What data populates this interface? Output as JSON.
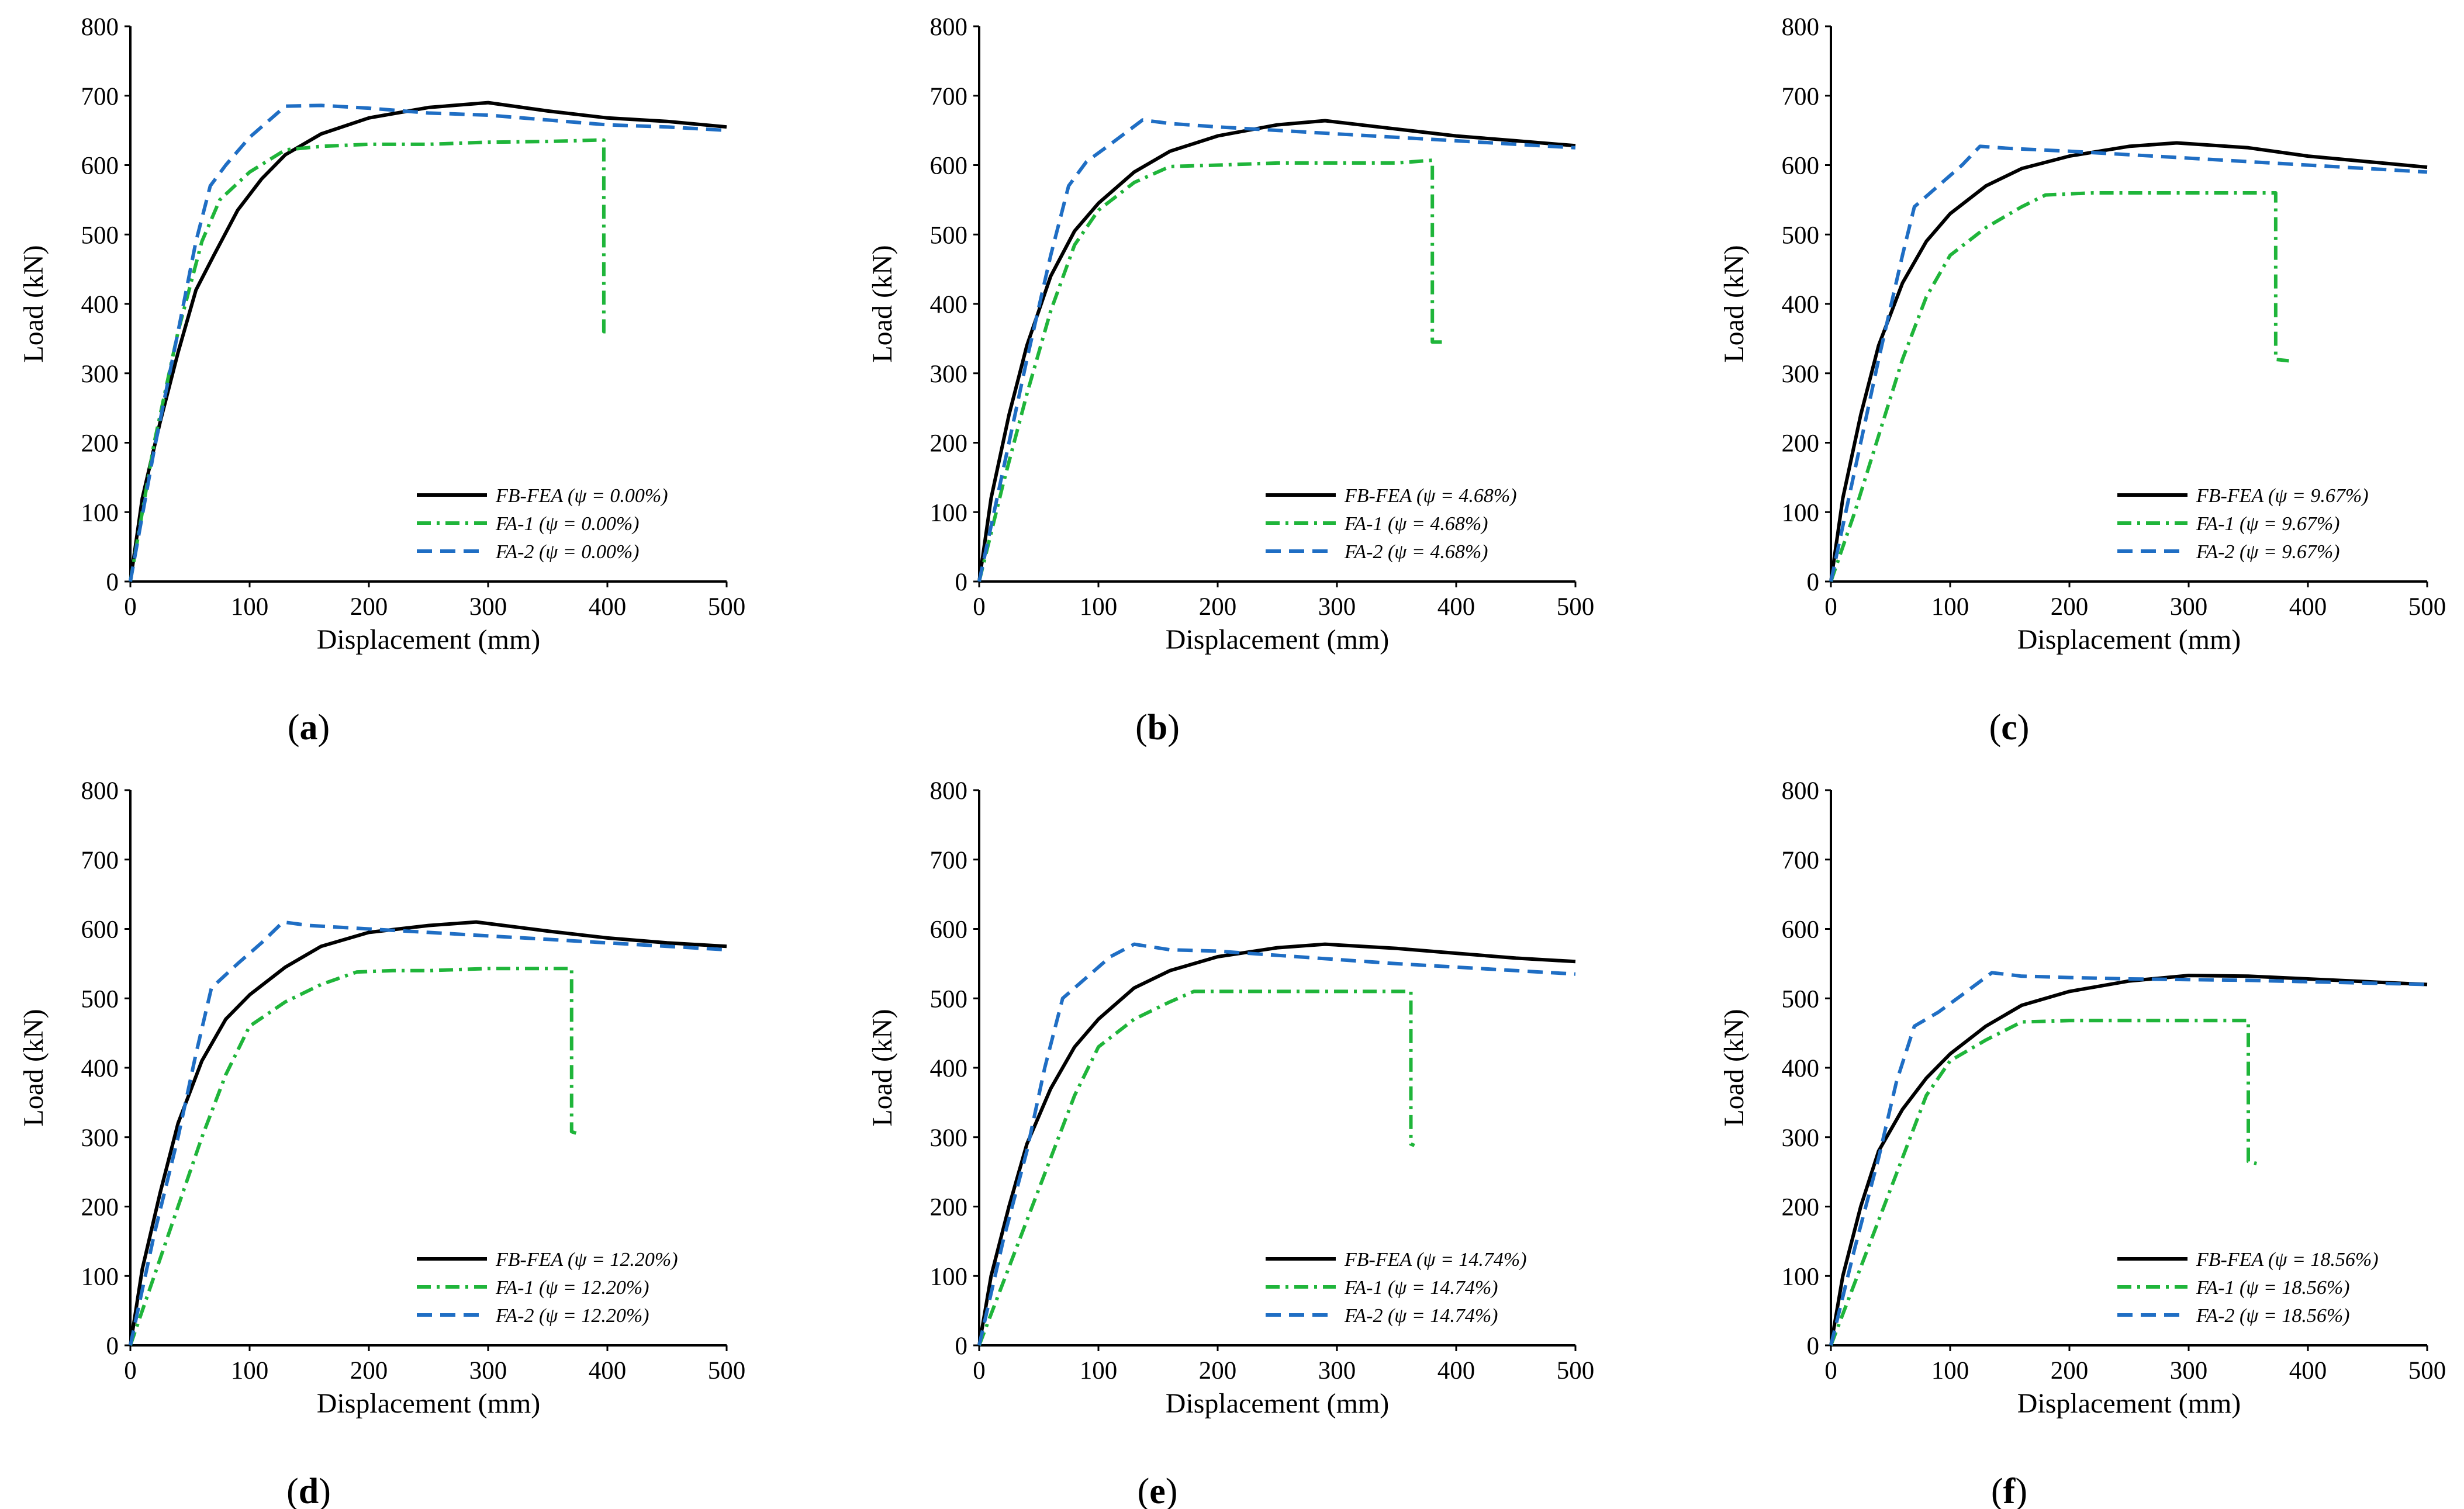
{
  "figure": {
    "colors": {
      "fb_fea": "#000000",
      "fa1": "#1fb53a",
      "fa2": "#1f6ec4",
      "axis": "#000000"
    }
  },
  "chart_data": [
    {
      "type": "line",
      "panel_label": "(a)",
      "panel_letter": "a",
      "xlabel": "Displacement (mm)",
      "ylabel": "Load (kN)",
      "xlim": [
        0,
        500
      ],
      "ylim": [
        0,
        800
      ],
      "xticks": [
        "0",
        "100",
        "200",
        "300",
        "400",
        "500"
      ],
      "yticks": [
        "0",
        "100",
        "200",
        "300",
        "400",
        "500",
        "600",
        "700",
        "800"
      ],
      "legend_position": "bottom-right",
      "series": [
        {
          "name": "FB-FEA",
          "legend": "FB-FEA (ψ = 0.00%)",
          "style": "solid",
          "color": "#000000",
          "x": [
            0,
            10,
            25,
            40,
            55,
            70,
            90,
            110,
            130,
            160,
            200,
            250,
            300,
            350,
            400,
            450,
            500
          ],
          "y": [
            0,
            120,
            230,
            330,
            420,
            470,
            535,
            580,
            615,
            645,
            668,
            683,
            690,
            678,
            668,
            663,
            655
          ]
        },
        {
          "name": "FA-1",
          "legend": "FA-1 (ψ = 0.00%)",
          "style": "dashdot",
          "color": "#1fb53a",
          "x": [
            0,
            20,
            40,
            60,
            75,
            100,
            130,
            160,
            200,
            250,
            300,
            350,
            390,
            397,
            397,
            402
          ],
          "y": [
            0,
            200,
            360,
            490,
            550,
            590,
            622,
            627,
            630,
            630,
            633,
            634,
            636,
            636,
            360,
            360
          ]
        },
        {
          "name": "FA-2",
          "legend": "FA-2 (ψ = 0.00%)",
          "style": "dashed",
          "color": "#1f6ec4",
          "x": [
            0,
            20,
            40,
            55,
            67,
            80,
            100,
            130,
            160,
            200,
            250,
            300,
            350,
            400,
            450,
            500
          ],
          "y": [
            0,
            190,
            360,
            490,
            570,
            600,
            640,
            685,
            686,
            682,
            675,
            672,
            665,
            658,
            655,
            650
          ]
        }
      ]
    },
    {
      "type": "line",
      "panel_label": "(b)",
      "panel_letter": "b",
      "xlabel": "Displacement (mm)",
      "ylabel": "Load (kN)",
      "xlim": [
        0,
        500
      ],
      "ylim": [
        0,
        800
      ],
      "xticks": [
        "0",
        "100",
        "200",
        "300",
        "400",
        "500"
      ],
      "yticks": [
        "0",
        "100",
        "200",
        "300",
        "400",
        "500",
        "600",
        "700",
        "800"
      ],
      "legend_position": "bottom-right",
      "series": [
        {
          "name": "FB-FEA",
          "legend": "FB-FEA (ψ = 4.68%)",
          "style": "solid",
          "color": "#000000",
          "x": [
            0,
            10,
            25,
            40,
            60,
            80,
            100,
            130,
            160,
            200,
            250,
            290,
            350,
            400,
            450,
            500
          ],
          "y": [
            0,
            120,
            240,
            340,
            440,
            505,
            545,
            590,
            620,
            642,
            658,
            664,
            652,
            642,
            635,
            628
          ]
        },
        {
          "name": "FA-1",
          "legend": "FA-1 (ψ = 4.68%)",
          "style": "dashdot",
          "color": "#1fb53a",
          "x": [
            0,
            20,
            40,
            60,
            80,
            100,
            130,
            160,
            200,
            250,
            300,
            350,
            380,
            380,
            388
          ],
          "y": [
            0,
            140,
            270,
            390,
            485,
            535,
            575,
            598,
            600,
            603,
            603,
            603,
            607,
            345,
            345
          ]
        },
        {
          "name": "FA-2",
          "legend": "FA-2 (ψ = 4.68%)",
          "style": "dashed",
          "color": "#1f6ec4",
          "x": [
            0,
            20,
            40,
            60,
            75,
            90,
            110,
            137,
            160,
            200,
            250,
            300,
            350,
            400,
            450,
            500
          ],
          "y": [
            0,
            160,
            320,
            470,
            570,
            605,
            630,
            665,
            660,
            655,
            650,
            645,
            640,
            635,
            630,
            625
          ]
        }
      ]
    },
    {
      "type": "line",
      "panel_label": "(c)",
      "panel_letter": "c",
      "xlabel": "Displacement (mm)",
      "ylabel": "Load (kN)",
      "xlim": [
        0,
        500
      ],
      "ylim": [
        0,
        800
      ],
      "xticks": [
        "0",
        "100",
        "200",
        "300",
        "400",
        "500"
      ],
      "yticks": [
        "0",
        "100",
        "200",
        "300",
        "400",
        "500",
        "600",
        "700",
        "800"
      ],
      "legend_position": "bottom-right",
      "series": [
        {
          "name": "FB-FEA",
          "legend": "FB-FEA (ψ = 9.67%)",
          "style": "solid",
          "color": "#000000",
          "x": [
            0,
            10,
            25,
            40,
            60,
            80,
            100,
            130,
            160,
            200,
            250,
            290,
            350,
            400,
            450,
            500
          ],
          "y": [
            0,
            120,
            240,
            340,
            430,
            490,
            530,
            570,
            595,
            613,
            627,
            632,
            625,
            613,
            605,
            597
          ]
        },
        {
          "name": "FA-1",
          "legend": "FA-1 (ψ = 9.67%)",
          "style": "dashdot",
          "color": "#1fb53a",
          "x": [
            0,
            20,
            40,
            60,
            80,
            100,
            130,
            160,
            180,
            220,
            260,
            300,
            340,
            373,
            373,
            384
          ],
          "y": [
            0,
            100,
            210,
            320,
            410,
            470,
            510,
            540,
            557,
            560,
            560,
            560,
            560,
            560,
            320,
            318
          ]
        },
        {
          "name": "FA-2",
          "legend": "FA-2 (ψ = 9.67%)",
          "style": "dashed",
          "color": "#1f6ec4",
          "x": [
            0,
            20,
            40,
            60,
            70,
            90,
            110,
            125,
            150,
            200,
            250,
            300,
            350,
            400,
            450,
            500
          ],
          "y": [
            0,
            160,
            320,
            470,
            540,
            570,
            600,
            627,
            624,
            620,
            615,
            610,
            605,
            600,
            595,
            590
          ]
        }
      ]
    },
    {
      "type": "line",
      "panel_label": "(d)",
      "panel_letter": "d",
      "xlabel": "Displacement (mm)",
      "ylabel": "Load (kN)",
      "xlim": [
        0,
        500
      ],
      "ylim": [
        0,
        800
      ],
      "xticks": [
        "0",
        "100",
        "200",
        "300",
        "400",
        "500"
      ],
      "yticks": [
        "0",
        "100",
        "200",
        "300",
        "400",
        "500",
        "600",
        "700",
        "800"
      ],
      "legend_position": "bottom-right",
      "series": [
        {
          "name": "FB-FEA",
          "legend": "FB-FEA (ψ = 12.20%)",
          "style": "solid",
          "color": "#000000",
          "x": [
            0,
            10,
            25,
            40,
            60,
            80,
            100,
            130,
            160,
            200,
            250,
            290,
            350,
            400,
            450,
            500
          ],
          "y": [
            0,
            110,
            220,
            320,
            410,
            470,
            505,
            545,
            575,
            595,
            605,
            610,
            597,
            587,
            580,
            575
          ]
        },
        {
          "name": "FA-1",
          "legend": "FA-1 (ψ = 12.20%)",
          "style": "dashdot",
          "color": "#1fb53a",
          "x": [
            0,
            20,
            40,
            60,
            80,
            100,
            130,
            160,
            190,
            220,
            250,
            300,
            340,
            370,
            370,
            375
          ],
          "y": [
            0,
            100,
            200,
            300,
            390,
            460,
            495,
            520,
            538,
            540,
            540,
            543,
            543,
            543,
            308,
            305
          ]
        },
        {
          "name": "FA-2",
          "legend": "FA-2 (ψ = 12.20%)",
          "style": "dashed",
          "color": "#1f6ec4",
          "x": [
            0,
            20,
            40,
            55,
            68,
            90,
            110,
            128,
            150,
            200,
            250,
            300,
            350,
            400,
            450,
            500
          ],
          "y": [
            0,
            160,
            300,
            420,
            515,
            550,
            580,
            610,
            605,
            600,
            595,
            590,
            585,
            580,
            575,
            570
          ]
        }
      ]
    },
    {
      "type": "line",
      "panel_label": "(e)",
      "panel_letter": "e",
      "xlabel": "Displacement (mm)",
      "ylabel": "Load (kN)",
      "xlim": [
        0,
        500
      ],
      "ylim": [
        0,
        800
      ],
      "xticks": [
        "0",
        "100",
        "200",
        "300",
        "400",
        "500"
      ],
      "yticks": [
        "0",
        "100",
        "200",
        "300",
        "400",
        "500",
        "600",
        "700",
        "800"
      ],
      "legend_position": "bottom-right",
      "series": [
        {
          "name": "FB-FEA",
          "legend": "FB-FEA (ψ = 14.74%)",
          "style": "solid",
          "color": "#000000",
          "x": [
            0,
            10,
            25,
            40,
            60,
            80,
            100,
            130,
            160,
            200,
            250,
            290,
            350,
            400,
            450,
            500
          ],
          "y": [
            0,
            100,
            200,
            290,
            370,
            430,
            470,
            515,
            540,
            560,
            573,
            578,
            572,
            565,
            558,
            553
          ]
        },
        {
          "name": "FA-1",
          "legend": "FA-1 (ψ = 14.74%)",
          "style": "dashdot",
          "color": "#1fb53a",
          "x": [
            0,
            20,
            40,
            60,
            80,
            100,
            130,
            160,
            180,
            220,
            260,
            300,
            340,
            362,
            362,
            365
          ],
          "y": [
            0,
            90,
            180,
            270,
            360,
            430,
            470,
            495,
            510,
            510,
            510,
            510,
            510,
            510,
            290,
            288
          ]
        },
        {
          "name": "FA-2",
          "legend": "FA-2 (ψ = 14.74%)",
          "style": "dashed",
          "color": "#1f6ec4",
          "x": [
            0,
            20,
            40,
            55,
            70,
            90,
            110,
            130,
            160,
            200,
            250,
            300,
            350,
            400,
            450,
            500
          ],
          "y": [
            0,
            150,
            280,
            400,
            500,
            530,
            560,
            578,
            570,
            568,
            562,
            556,
            550,
            545,
            540,
            535
          ]
        }
      ]
    },
    {
      "type": "line",
      "panel_label": "(f)",
      "panel_letter": "f",
      "xlabel": "Displacement (mm)",
      "ylabel": "Load (kN)",
      "xlim": [
        0,
        500
      ],
      "ylim": [
        0,
        800
      ],
      "xticks": [
        "0",
        "100",
        "200",
        "300",
        "400",
        "500"
      ],
      "yticks": [
        "0",
        "100",
        "200",
        "300",
        "400",
        "500",
        "600",
        "700",
        "800"
      ],
      "legend_position": "bottom-right",
      "series": [
        {
          "name": "FB-FEA",
          "legend": "FB-FEA (ψ = 18.56%)",
          "style": "solid",
          "color": "#000000",
          "x": [
            0,
            10,
            25,
            40,
            60,
            80,
            100,
            130,
            160,
            200,
            250,
            300,
            350,
            400,
            450,
            500
          ],
          "y": [
            0,
            100,
            200,
            280,
            340,
            385,
            420,
            460,
            490,
            510,
            525,
            533,
            532,
            528,
            524,
            520
          ]
        },
        {
          "name": "FA-1",
          "legend": "FA-1 (ψ = 18.56%)",
          "style": "dashdot",
          "color": "#1fb53a",
          "x": [
            0,
            20,
            40,
            60,
            80,
            100,
            130,
            160,
            200,
            250,
            300,
            350,
            350,
            357
          ],
          "y": [
            0,
            90,
            180,
            270,
            360,
            410,
            440,
            466,
            468,
            468,
            468,
            468,
            265,
            262
          ]
        },
        {
          "name": "FA-2",
          "legend": "FA-2 (ψ = 18.56%)",
          "style": "dashed",
          "color": "#1f6ec4",
          "x": [
            0,
            20,
            40,
            55,
            70,
            90,
            110,
            135,
            160,
            200,
            250,
            300,
            350,
            400,
            450,
            500
          ],
          "y": [
            0,
            140,
            270,
            380,
            460,
            480,
            505,
            537,
            532,
            530,
            528,
            527,
            526,
            524,
            522,
            520
          ]
        }
      ]
    }
  ]
}
